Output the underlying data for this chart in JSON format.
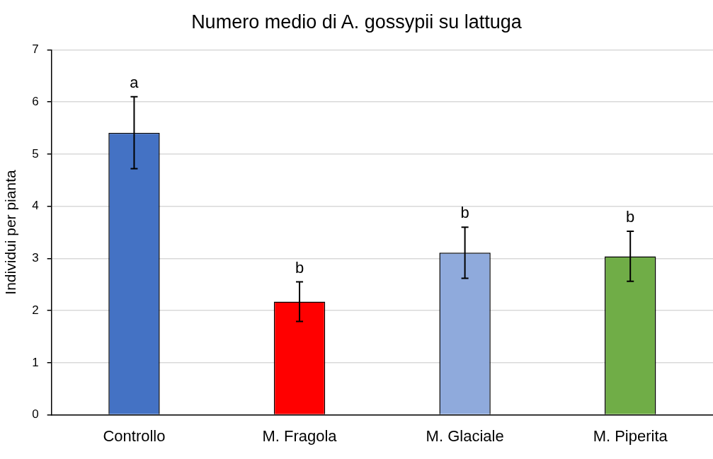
{
  "chart_data": {
    "type": "bar",
    "title": "Numero medio di A. gossypii su lattuga",
    "ylabel": "Individui per pianta",
    "categories": [
      "Controllo",
      "M. Fragola",
      "M. Glaciale",
      "M. Piperita"
    ],
    "values": [
      5.41,
      2.17,
      3.11,
      3.04
    ],
    "colors": [
      "#4472c4",
      "#ff0000",
      "#8faadc",
      "#70ad47"
    ],
    "errors": [
      0.69,
      0.38,
      0.49,
      0.48
    ],
    "ylim": [
      0,
      7
    ],
    "yticks": [
      0,
      1,
      2,
      3,
      4,
      5,
      6,
      7
    ],
    "grid": "y",
    "legend": false,
    "annotations": [
      {
        "text": "a",
        "x": "Controllo",
        "y": 6.1
      },
      {
        "text": "b",
        "x": "M. Fragola",
        "y": 2.55
      },
      {
        "text": "b",
        "x": "M. Glaciale",
        "y": 3.6
      },
      {
        "text": "b",
        "x": "M. Piperita",
        "y": 3.52
      }
    ]
  }
}
